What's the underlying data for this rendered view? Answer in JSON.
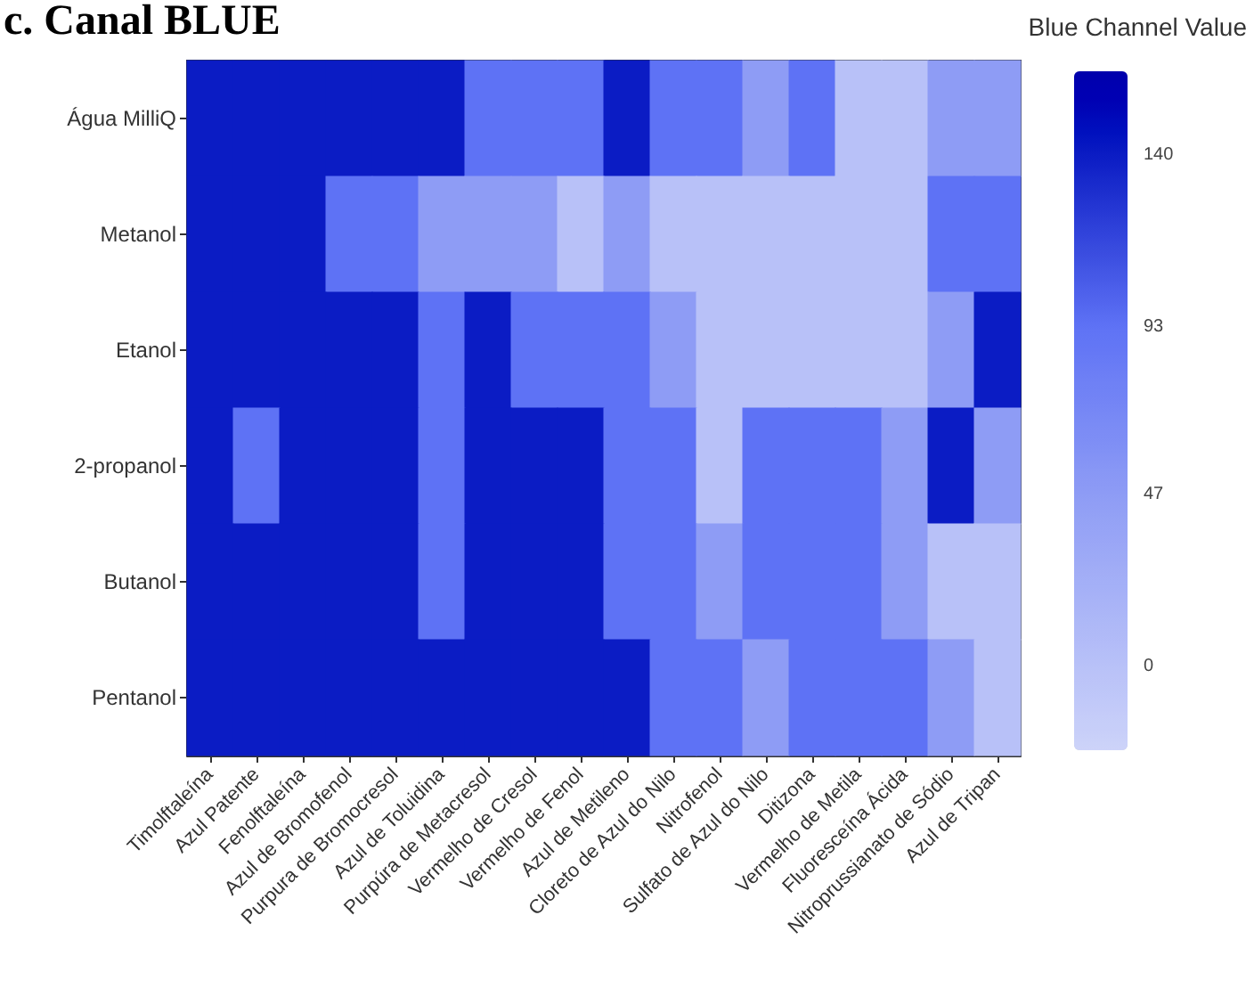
{
  "chart_data": {
    "type": "heatmap",
    "title": "c. Canal BLUE",
    "clabel": "Blue Channel Value",
    "categories": [
      "Timolftaleína",
      "Azul Patente",
      "Fenolftaleína",
      "Azul de Bromofenol",
      "Purpura de Bromocresol",
      "Azul de Toluidina",
      "Purpúra de Metacresol",
      "Vermelho de Cresol",
      "Vermelho de Fenol",
      "Azul de Metileno",
      "Cloreto de Azul do Nilo",
      "Nitrofenol",
      "Sulfato de Azul do Nilo",
      "Ditizona",
      "Vermelho de Metila",
      "Fluoresceína Ácida",
      "Nitroprussianato de Sódio",
      "Azul de Tripan"
    ],
    "y_categories": [
      "Água MilliQ",
      "Metanol",
      "Etanol",
      "2-propanol",
      "Butanol",
      "Pentanol"
    ],
    "cells": [
      [
        140,
        140,
        140,
        140,
        140,
        140,
        93,
        93,
        93,
        140,
        93,
        93,
        47,
        93,
        0,
        0,
        47,
        47
      ],
      [
        140,
        140,
        140,
        93,
        93,
        47,
        47,
        47,
        0,
        47,
        0,
        0,
        0,
        0,
        0,
        0,
        93,
        93
      ],
      [
        140,
        140,
        140,
        140,
        140,
        93,
        140,
        93,
        93,
        93,
        47,
        0,
        0,
        0,
        0,
        0,
        47,
        140
      ],
      [
        140,
        93,
        140,
        140,
        140,
        93,
        140,
        140,
        140,
        93,
        93,
        0,
        93,
        93,
        93,
        47,
        140,
        47
      ],
      [
        140,
        140,
        140,
        140,
        140,
        93,
        140,
        140,
        140,
        93,
        93,
        47,
        93,
        93,
        93,
        47,
        0,
        0
      ],
      [
        140,
        140,
        140,
        140,
        140,
        140,
        140,
        140,
        140,
        140,
        93,
        93,
        47,
        93,
        93,
        93,
        47,
        0
      ]
    ],
    "clim": [
      -23,
      163
    ],
    "cticks": [
      0,
      47,
      93,
      140
    ],
    "colors": [
      "#b8c1f8",
      "#8e9cf5",
      "#5e72f5",
      "#0b1cc4"
    ]
  }
}
